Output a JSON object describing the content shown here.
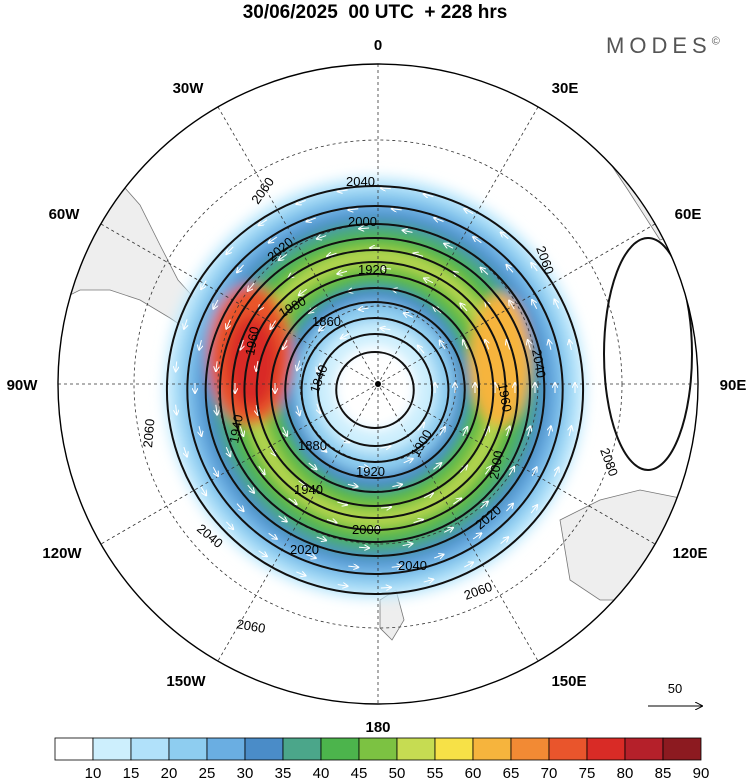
{
  "header": {
    "title": "30/06/2025  00 UTC  + 228 hrs",
    "brand": "MODES",
    "brand_mark": "©"
  },
  "map": {
    "projection": "south polar stereographic",
    "longitude_labels": {
      "lon_0": "0",
      "lon_30e": "30E",
      "lon_60e": "60E",
      "lon_90e": "90E",
      "lon_120e": "120E",
      "lon_150e": "150E",
      "lon_180": "180",
      "lon_150w": "150W",
      "lon_120w": "120W",
      "lon_90w": "90W",
      "lon_60w": "60W",
      "lon_30w": "30W"
    },
    "geopotential_contours": [
      "1840",
      "1860",
      "1880",
      "1900",
      "1920",
      "1940",
      "1960",
      "1980",
      "2000",
      "2020",
      "2040",
      "2060",
      "2080"
    ],
    "contour_labels": {
      "c2080": "2080",
      "c2060_n": "2060",
      "c2060_ne": "2060",
      "c2060_s": "2060",
      "c2060_se": "2060",
      "c2060_w": "2060",
      "c2040_n": "2040",
      "c2040_e": "2040",
      "c2040_s": "2040",
      "c2040_sw": "2040",
      "c2020_nw": "2020",
      "c2020_s": "2020",
      "c2020_se": "2020",
      "c2000_n": "2000",
      "c2000_e": "2000",
      "c2000_s": "2000",
      "c1980_nw": "1980",
      "c1960_w": "1960",
      "c1940_w": "1940",
      "c1940_s": "1940",
      "c1920_n": "1920",
      "c1920_s": "1920",
      "c1900_e": "1900",
      "c1880_s": "1880",
      "c1860_n": "1860",
      "c1840_c": "1840",
      "c1960_e": "1960"
    },
    "wind_reference_vector": "50"
  },
  "colorbar": {
    "ticks": [
      "10",
      "15",
      "20",
      "25",
      "30",
      "35",
      "40",
      "45",
      "50",
      "55",
      "60",
      "65",
      "70",
      "75",
      "80",
      "85",
      "90"
    ],
    "colors": [
      "#ffffff",
      "#cdeffd",
      "#b1e1fa",
      "#8ecdf0",
      "#6aaee2",
      "#4a8cc8",
      "#4ba68a",
      "#4cb44c",
      "#7cc242",
      "#c6dc52",
      "#f7e147",
      "#f6b43d",
      "#f28a34",
      "#e9552c",
      "#d92b26",
      "#b5202a",
      "#8c1a20"
    ]
  },
  "colors": {
    "land": "#eeeeee",
    "coast": "#777777",
    "contour": "#111111",
    "grid": "#333333"
  }
}
